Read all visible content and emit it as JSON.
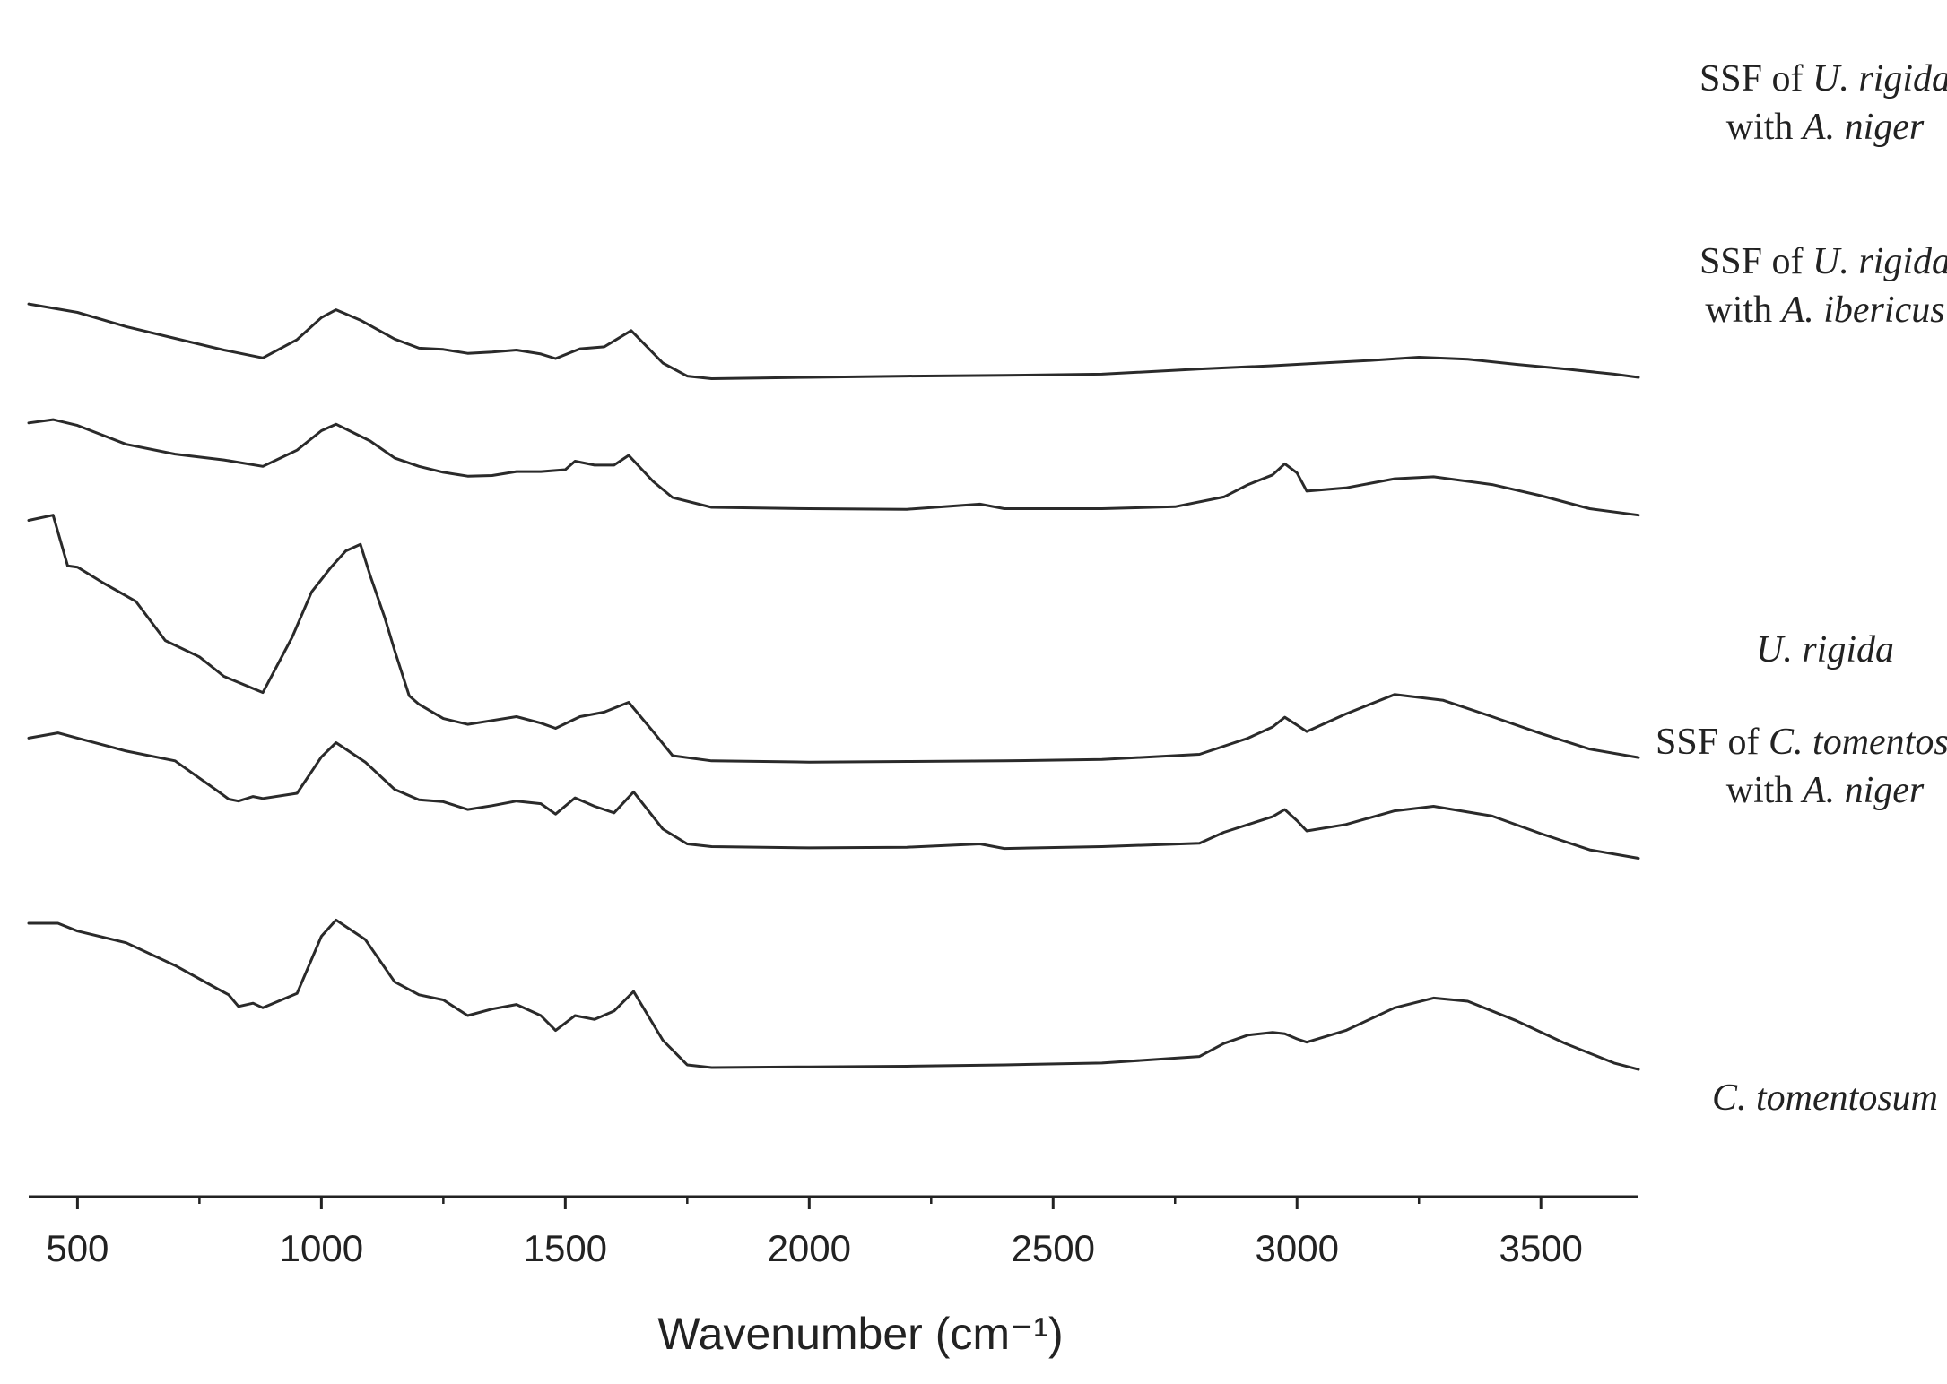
{
  "chart_data": {
    "type": "line",
    "title": "",
    "xlabel": "Wavenumber (cm⁻¹)",
    "ylabel": "",
    "xlim": [
      400,
      3700
    ],
    "x_major_ticks": [
      500,
      1000,
      1500,
      2000,
      2500,
      3000,
      3500
    ],
    "x_minor_ticks": [
      750,
      1250,
      1750,
      2250,
      2750,
      3250
    ],
    "tick_labels": [
      "500",
      "1000",
      "1500",
      "2000",
      "2500",
      "3000",
      "3500"
    ],
    "grid": false,
    "legend": "inline labels at right of each trace",
    "y_axis_shown": false,
    "series": [
      {
        "name": "SSF of U. rigida with A. niger",
        "label_lines": [
          [
            {
              "t": "SSF of ",
              "i": false
            },
            {
              "t": "U. rigida",
              "i": true
            }
          ],
          [
            {
              "t": "with ",
              "i": false
            },
            {
              "t": "A. niger",
              "i": true
            }
          ]
        ],
        "x": [
          400,
          500,
          600,
          700,
          800,
          880,
          950,
          1000,
          1030,
          1080,
          1150,
          1200,
          1250,
          1300,
          1350,
          1400,
          1450,
          1480,
          1530,
          1580,
          1635,
          1700,
          1750,
          1800,
          1900,
          2000,
          2200,
          2400,
          2600,
          2800,
          2950,
          3050,
          3150,
          3250,
          3350,
          3450,
          3550,
          3650,
          3700
        ],
        "y": [
          0.953,
          0.94,
          0.918,
          0.9,
          0.882,
          0.87,
          0.898,
          0.932,
          0.944,
          0.928,
          0.899,
          0.885,
          0.883,
          0.877,
          0.879,
          0.882,
          0.876,
          0.869,
          0.884,
          0.887,
          0.912,
          0.862,
          0.842,
          0.838,
          0.839,
          0.84,
          0.842,
          0.843,
          0.845,
          0.853,
          0.858,
          0.862,
          0.866,
          0.871,
          0.868,
          0.86,
          0.853,
          0.845,
          0.84
        ]
      },
      {
        "name": "SSF of U. rigida with A. ibericus",
        "label_lines": [
          [
            {
              "t": "SSF of ",
              "i": false
            },
            {
              "t": "U. rigida",
              "i": true
            }
          ],
          [
            {
              "t": "with ",
              "i": false
            },
            {
              "t": "A. ibericus",
              "i": true
            }
          ]
        ],
        "x": [
          400,
          450,
          500,
          600,
          700,
          800,
          880,
          950,
          1000,
          1030,
          1100,
          1150,
          1200,
          1250,
          1300,
          1350,
          1400,
          1450,
          1500,
          1520,
          1560,
          1600,
          1630,
          1680,
          1720,
          1800,
          2000,
          2200,
          2350,
          2400,
          2600,
          2750,
          2850,
          2900,
          2950,
          2975,
          3000,
          3020,
          3100,
          3200,
          3280,
          3400,
          3500,
          3600,
          3700
        ],
        "y": [
          0.77,
          0.775,
          0.766,
          0.737,
          0.722,
          0.713,
          0.703,
          0.728,
          0.758,
          0.768,
          0.742,
          0.716,
          0.703,
          0.694,
          0.688,
          0.689,
          0.695,
          0.695,
          0.698,
          0.711,
          0.705,
          0.705,
          0.72,
          0.68,
          0.655,
          0.64,
          0.638,
          0.637,
          0.645,
          0.638,
          0.638,
          0.641,
          0.656,
          0.675,
          0.69,
          0.707,
          0.693,
          0.665,
          0.67,
          0.684,
          0.687,
          0.675,
          0.658,
          0.638,
          0.628
        ]
      },
      {
        "name": "U. rigida",
        "label_lines": [
          [
            {
              "t": "U. rigida",
              "i": true
            }
          ]
        ],
        "x": [
          400,
          450,
          480,
          500,
          550,
          620,
          680,
          750,
          800,
          880,
          940,
          980,
          1020,
          1050,
          1080,
          1100,
          1130,
          1150,
          1180,
          1200,
          1250,
          1300,
          1350,
          1400,
          1450,
          1480,
          1530,
          1580,
          1630,
          1680,
          1720,
          1800,
          2000,
          2200,
          2400,
          2600,
          2800,
          2900,
          2950,
          2975,
          3000,
          3020,
          3100,
          3200,
          3300,
          3400,
          3500,
          3600,
          3700
        ],
        "y": [
          0.62,
          0.628,
          0.55,
          0.548,
          0.525,
          0.495,
          0.435,
          0.41,
          0.38,
          0.355,
          0.44,
          0.51,
          0.548,
          0.573,
          0.583,
          0.535,
          0.47,
          0.42,
          0.35,
          0.337,
          0.315,
          0.306,
          0.312,
          0.318,
          0.308,
          0.3,
          0.318,
          0.325,
          0.34,
          0.295,
          0.258,
          0.25,
          0.248,
          0.249,
          0.25,
          0.252,
          0.26,
          0.285,
          0.302,
          0.317,
          0.305,
          0.295,
          0.322,
          0.352,
          0.343,
          0.318,
          0.292,
          0.268,
          0.255
        ]
      },
      {
        "name": "SSF of C. tomentosum with A. niger",
        "label_lines": [
          [
            {
              "t": "SSF of ",
              "i": false
            },
            {
              "t": "C. tomentosum",
              "i": true
            }
          ],
          [
            {
              "t": "with ",
              "i": false
            },
            {
              "t": "A. niger",
              "i": true
            }
          ]
        ],
        "x": [
          400,
          460,
          500,
          600,
          700,
          790,
          810,
          830,
          860,
          880,
          950,
          1000,
          1030,
          1090,
          1150,
          1200,
          1250,
          1300,
          1350,
          1400,
          1450,
          1480,
          1520,
          1560,
          1600,
          1640,
          1700,
          1750,
          1800,
          2000,
          2200,
          2350,
          2400,
          2600,
          2800,
          2850,
          2900,
          2950,
          2975,
          3000,
          3020,
          3100,
          3200,
          3280,
          3400,
          3500,
          3600,
          3700
        ],
        "y": [
          0.285,
          0.293,
          0.285,
          0.265,
          0.25,
          0.202,
          0.191,
          0.188,
          0.195,
          0.192,
          0.2,
          0.256,
          0.278,
          0.248,
          0.206,
          0.19,
          0.187,
          0.175,
          0.181,
          0.188,
          0.184,
          0.168,
          0.193,
          0.18,
          0.17,
          0.202,
          0.145,
          0.122,
          0.118,
          0.116,
          0.117,
          0.122,
          0.115,
          0.118,
          0.123,
          0.14,
          0.152,
          0.164,
          0.175,
          0.158,
          0.142,
          0.152,
          0.173,
          0.18,
          0.165,
          0.138,
          0.113,
          0.1
        ]
      },
      {
        "name": "C. tomentosum",
        "label_lines": [
          [
            {
              "t": "C. tomentosum",
              "i": true
            }
          ]
        ],
        "x": [
          400,
          460,
          500,
          600,
          700,
          790,
          810,
          830,
          860,
          880,
          950,
          1000,
          1030,
          1090,
          1150,
          1200,
          1250,
          1300,
          1350,
          1400,
          1450,
          1480,
          1520,
          1560,
          1600,
          1640,
          1700,
          1750,
          1800,
          2000,
          2200,
          2400,
          2600,
          2800,
          2850,
          2900,
          2950,
          2975,
          3000,
          3020,
          3100,
          3200,
          3280,
          3350,
          3450,
          3550,
          3650,
          3700
        ],
        "y": [
          0.0,
          0.0,
          -0.012,
          -0.03,
          -0.065,
          -0.102,
          -0.11,
          -0.128,
          -0.123,
          -0.13,
          -0.108,
          -0.02,
          0.005,
          -0.025,
          -0.09,
          -0.11,
          -0.118,
          -0.142,
          -0.132,
          -0.125,
          -0.142,
          -0.165,
          -0.142,
          -0.148,
          -0.135,
          -0.105,
          -0.18,
          -0.218,
          -0.222,
          -0.221,
          -0.22,
          -0.218,
          -0.215,
          -0.205,
          -0.185,
          -0.172,
          -0.168,
          -0.17,
          -0.178,
          -0.183,
          -0.165,
          -0.13,
          -0.115,
          -0.12,
          -0.15,
          -0.185,
          -0.215,
          -0.225
        ]
      }
    ]
  }
}
